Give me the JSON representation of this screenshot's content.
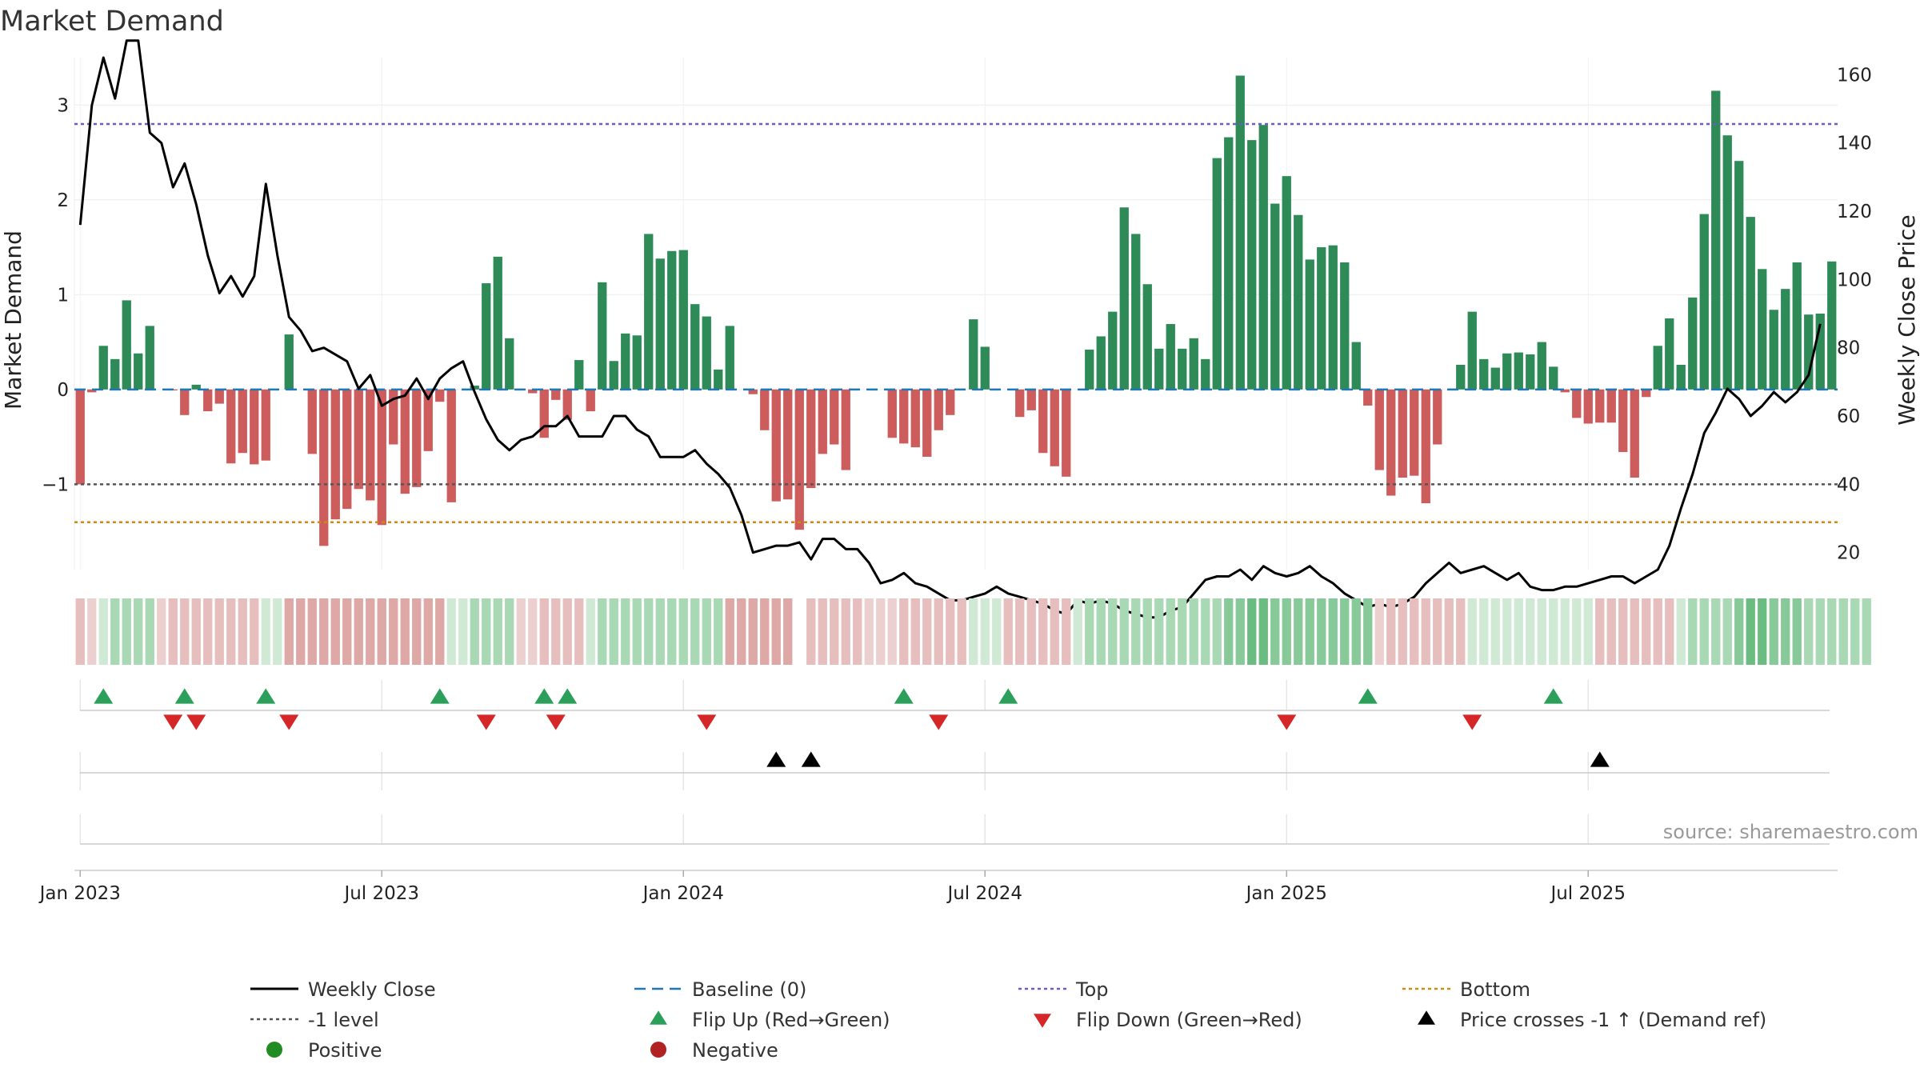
{
  "chart_data": {
    "type": "bar",
    "title": "Market Demand",
    "ylabel_left": "Market Demand",
    "ylabel_right": "Weekly Close Price",
    "ylim_left": [
      -1.9,
      3.5
    ],
    "ylim_right": [
      15,
      165
    ],
    "yticks_left": [
      {
        "v": 3,
        "label": "3"
      },
      {
        "v": 2,
        "label": "2"
      },
      {
        "v": 1,
        "label": "1"
      },
      {
        "v": 0,
        "label": "0"
      },
      {
        "v": -1,
        "label": "−1"
      }
    ],
    "yticks_right": [
      {
        "v": 160,
        "label": "160"
      },
      {
        "v": 140,
        "label": "140"
      },
      {
        "v": 120,
        "label": "120"
      },
      {
        "v": 100,
        "label": "100"
      },
      {
        "v": 80,
        "label": "80"
      },
      {
        "v": 60,
        "label": "60"
      },
      {
        "v": 40,
        "label": "40"
      },
      {
        "v": 20,
        "label": "20"
      }
    ],
    "xticks": [
      {
        "week": 1,
        "label": "Jan 2023"
      },
      {
        "week": 27,
        "label": "Jul 2023"
      },
      {
        "week": 53,
        "label": "Jan 2024"
      },
      {
        "week": 79,
        "label": "Jul 2024"
      },
      {
        "week": 105,
        "label": "Jan 2025"
      },
      {
        "week": 131,
        "label": "Jul 2025"
      }
    ],
    "reference_lines": {
      "top": 2.8,
      "bottom": -1.4,
      "minus_one": -1,
      "baseline": 0
    },
    "demand": [
      -1.0,
      -0.03,
      0.46,
      0.32,
      0.94,
      0.38,
      0.67,
      0.0,
      -0.01,
      -0.27,
      0.05,
      -0.23,
      -0.15,
      -0.78,
      -0.67,
      -0.79,
      -0.75,
      0.0,
      0.58,
      0.0,
      -0.68,
      -1.65,
      -1.37,
      -1.26,
      -1.05,
      -1.17,
      -1.43,
      -0.58,
      -1.1,
      -1.03,
      -0.65,
      -0.13,
      -1.19,
      0.0,
      0.04,
      1.12,
      1.4,
      0.54,
      0.0,
      -0.04,
      -0.51,
      -0.11,
      -0.32,
      0.31,
      -0.23,
      1.13,
      0.3,
      0.59,
      0.57,
      1.64,
      1.38,
      1.46,
      1.47,
      0.9,
      0.77,
      0.21,
      0.67,
      0.0,
      -0.05,
      -0.43,
      -1.18,
      -1.16,
      -1.48,
      -1.04,
      -0.68,
      -0.58,
      -0.85,
      0.0,
      0.0,
      0.0,
      -0.51,
      -0.57,
      -0.61,
      -0.71,
      -0.43,
      -0.27,
      0.0,
      0.74,
      0.45,
      0.0,
      0.0,
      -0.29,
      -0.22,
      -0.67,
      -0.81,
      -0.92,
      0.0,
      0.42,
      0.56,
      0.82,
      1.92,
      1.64,
      1.11,
      0.43,
      0.69,
      0.43,
      0.54,
      0.32,
      2.44,
      2.66,
      3.31,
      2.63,
      2.79,
      1.96,
      2.25,
      1.84,
      1.37,
      1.5,
      1.52,
      1.34,
      0.5,
      -0.17,
      -0.85,
      -1.12,
      -0.93,
      -0.91,
      -1.2,
      -0.58,
      0.0,
      0.26,
      0.82,
      0.32,
      0.23,
      0.38,
      0.39,
      0.37,
      0.5,
      0.24,
      -0.03,
      -0.3,
      -0.36,
      -0.35,
      -0.35,
      -0.66,
      -0.93,
      -0.08,
      0.46,
      0.75,
      0.26,
      0.97,
      1.85,
      3.15,
      2.68,
      2.41,
      1.82,
      1.27,
      0.84,
      1.06,
      1.34,
      0.79,
      0.8,
      1.35
    ],
    "close": [
      116,
      151,
      165,
      153,
      170,
      170,
      143,
      140,
      127,
      134,
      122,
      107,
      96,
      101,
      95,
      101,
      128,
      107,
      89,
      85,
      79,
      80,
      78,
      76,
      68,
      72,
      63,
      65,
      66,
      71,
      65,
      71,
      74,
      76,
      67,
      59,
      53,
      50,
      53,
      54,
      57,
      57,
      60,
      54,
      54,
      54,
      60,
      60,
      56,
      54,
      48,
      48,
      48,
      50,
      46,
      43,
      39,
      31,
      20,
      21,
      22,
      22,
      23,
      18,
      24,
      24,
      21,
      21,
      17,
      11,
      12,
      14,
      11,
      10,
      8,
      6,
      6,
      7,
      8,
      10,
      8,
      7,
      6,
      5,
      3,
      2,
      6,
      5,
      6,
      5,
      3,
      2,
      1,
      1,
      3,
      4,
      8,
      12,
      13,
      13,
      15,
      12,
      16,
      14,
      13,
      14,
      16,
      13,
      11,
      8,
      6,
      4,
      5,
      4,
      5,
      7,
      11,
      14,
      17,
      14,
      15,
      16,
      14,
      12,
      14,
      10,
      9,
      9,
      10,
      10,
      11,
      12,
      13,
      13,
      11,
      13,
      15,
      22,
      33,
      43,
      55,
      61,
      68,
      65,
      60,
      63,
      67,
      64,
      67,
      72,
      87
    ],
    "regime_strip": [
      -2,
      -1,
      1,
      2,
      2,
      2,
      2,
      -1,
      -2,
      -2,
      -2,
      -2,
      -2,
      -2,
      -2,
      -2,
      1,
      1,
      -3,
      -3,
      -3,
      -3,
      -3,
      -3,
      -3,
      -3,
      -3,
      -3,
      -3,
      -3,
      -3,
      -3,
      1,
      1,
      2,
      2,
      2,
      2,
      -1,
      -1,
      -2,
      -2,
      -2,
      -2,
      1,
      2,
      2,
      2,
      2,
      2,
      2,
      2,
      2,
      2,
      2,
      2,
      -3,
      -3,
      -3,
      -3,
      -3,
      -3,
      0,
      -2,
      -2,
      -2,
      -2,
      -2,
      -1,
      -1,
      -1,
      -2,
      -2,
      -2,
      -2,
      -2,
      -2,
      1,
      1,
      1,
      -2,
      -2,
      -2,
      -2,
      -2,
      -2,
      1,
      2,
      2,
      2,
      2,
      2,
      2,
      2,
      2,
      2,
      2,
      2,
      2,
      3,
      3,
      4,
      4,
      3,
      3,
      3,
      3,
      3,
      3,
      3,
      3,
      3,
      -1,
      -2,
      -2,
      -2,
      -2,
      -2,
      -2,
      -2,
      1,
      1,
      1,
      1,
      1,
      1,
      1,
      1,
      1,
      1,
      1,
      -2,
      -2,
      -2,
      -2,
      -2,
      -2,
      -2,
      1,
      2,
      2,
      2,
      2,
      3,
      4,
      4,
      3,
      3,
      3,
      2,
      2,
      2,
      2,
      2,
      2
    ],
    "flip_up_weeks": [
      3,
      10,
      17,
      32,
      41,
      43,
      72,
      81,
      112,
      128
    ],
    "flip_down_weeks": [
      9,
      11,
      19,
      36,
      42,
      55,
      75,
      105,
      121
    ],
    "price_cross_weeks": [
      61,
      64,
      132
    ],
    "legend": [
      {
        "key": "weekly_close",
        "label": "Weekly Close"
      },
      {
        "key": "baseline",
        "label": "Baseline (0)"
      },
      {
        "key": "top",
        "label": "Top"
      },
      {
        "key": "bottom",
        "label": "Bottom"
      },
      {
        "key": "minus_one",
        "label": "-1 level"
      },
      {
        "key": "flip_up",
        "label": "Flip Up (Red→Green)"
      },
      {
        "key": "flip_down",
        "label": "Flip Down (Green→Red)"
      },
      {
        "key": "price_cross",
        "label": "Price crosses -1 ↑ (Demand ref)"
      },
      {
        "key": "positive",
        "label": "Positive"
      },
      {
        "key": "negative",
        "label": "Negative"
      }
    ],
    "source": "source: sharemaestro.com"
  },
  "colors": {
    "positive_bar": "#2e8b57",
    "negative_bar": "#cd5c5c",
    "close_line": "#000000",
    "baseline": "#1f77b4",
    "top": "#6a5acd",
    "bottom": "#d4890a",
    "minus_one": "#555555",
    "flip_up": "#2ca05a",
    "flip_down": "#d62728",
    "price_cross": "#000000",
    "positive_dot": "#228b22",
    "negative_dot": "#b22222"
  }
}
